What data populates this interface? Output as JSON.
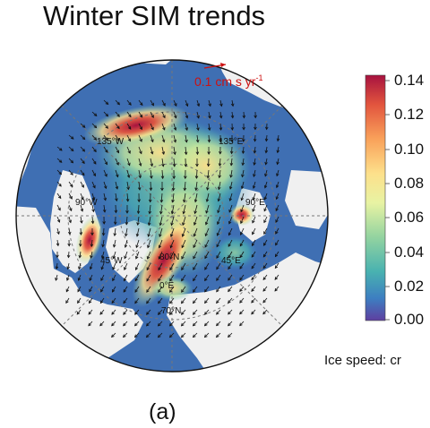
{
  "title": "Winter SIM trends",
  "scale_arrow_label": "0.1 cm s yr",
  "scale_arrow_superscript": "-1",
  "grid_labels": [
    "135°W",
    "135°E",
    "90°W",
    "90°E",
    "45°W",
    "45°E",
    "80°N",
    "0°E",
    "70°N"
  ],
  "colorbar": {
    "ticks": [
      "0.14",
      "0.12",
      "0.10",
      "0.08",
      "0.06",
      "0.04",
      "0.02",
      "0.00"
    ],
    "label": "Ice speed: cr",
    "colors": [
      "#5e3fa0",
      "#3d7ec1",
      "#49b2b0",
      "#93d3a0",
      "#e8f3a3",
      "#fde08b",
      "#f9a15a",
      "#e2553e",
      "#a7123f"
    ]
  },
  "panel_label": "(a)",
  "colors": {
    "ocean": "#3f6fb3",
    "land": "#f0f0f0",
    "gridline": "#777777",
    "label_red": "#cc1111"
  }
}
